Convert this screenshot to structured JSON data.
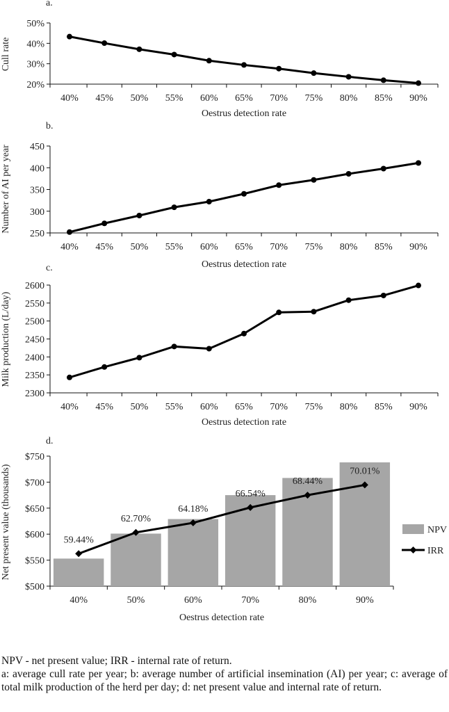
{
  "chart_data": [
    {
      "type": "line",
      "panel_label": "a.",
      "ylabel": "Cull rate",
      "xlabel": "Oestrus detection rate",
      "categories": [
        "40%",
        "45%",
        "50%",
        "55%",
        "60%",
        "65%",
        "70%",
        "75%",
        "80%",
        "85%",
        "90%"
      ],
      "series": [
        {
          "values": [
            43.3,
            40.1,
            37.1,
            34.5,
            31.5,
            29.4,
            27.6,
            25.4,
            23.6,
            21.9,
            20.5
          ]
        }
      ],
      "ylim": [
        20,
        50
      ],
      "yticks": [
        20,
        30,
        40,
        50
      ],
      "ytick_labels": [
        "20%",
        "30%",
        "40%",
        "50%"
      ],
      "grid": false
    },
    {
      "type": "line",
      "panel_label": "b.",
      "ylabel": "Number of AI per year",
      "xlabel": "Oestrus detection rate",
      "categories": [
        "40%",
        "45%",
        "50%",
        "55%",
        "60%",
        "65%",
        "70%",
        "75%",
        "80%",
        "85%",
        "90%"
      ],
      "series": [
        {
          "values": [
            252,
            272,
            290,
            309,
            322,
            340,
            360,
            372,
            386,
            398,
            411
          ]
        }
      ],
      "ylim": [
        250,
        450
      ],
      "yticks": [
        250,
        300,
        350,
        400,
        450
      ],
      "ytick_labels": [
        "250",
        "300",
        "350",
        "400",
        "450"
      ],
      "grid": false
    },
    {
      "type": "line",
      "panel_label": "c.",
      "ylabel": "Milk production (L/day)",
      "xlabel": "Oestrus detection rate",
      "categories": [
        "40%",
        "45%",
        "50%",
        "55%",
        "60%",
        "65%",
        "70%",
        "75%",
        "80%",
        "85%",
        "90%"
      ],
      "series": [
        {
          "values": [
            2343,
            2372,
            2398,
            2429,
            2423,
            2465,
            2524,
            2526,
            2558,
            2571,
            2599
          ]
        }
      ],
      "ylim": [
        2300,
        2600
      ],
      "yticks": [
        2300,
        2350,
        2400,
        2450,
        2500,
        2550,
        2600
      ],
      "ytick_labels": [
        "2300",
        "2350",
        "2400",
        "2450",
        "2500",
        "2550",
        "2600"
      ],
      "grid": false
    },
    {
      "type": "bar",
      "panel_label": "d.",
      "ylabel": "Net present value (thousands)",
      "xlabel": "Oestrus detection rate",
      "categories": [
        "40%",
        "50%",
        "60%",
        "70%",
        "80%",
        "90%"
      ],
      "series": [
        {
          "name": "NPV",
          "type": "bar",
          "color": "#a6a6a6",
          "values": [
            553,
            601,
            629,
            675,
            708,
            738
          ]
        },
        {
          "name": "IRR",
          "type": "line",
          "marker": "diamond",
          "color": "#000000",
          "values": [
            59.44,
            62.7,
            64.18,
            66.54,
            68.44,
            70.01
          ],
          "labels": [
            "59.44%",
            "62.70%",
            "64.18%",
            "66.54%",
            "68.44%",
            "70.01%"
          ]
        }
      ],
      "ylim": [
        500,
        750
      ],
      "yticks": [
        500,
        550,
        600,
        650,
        700,
        750
      ],
      "ytick_labels": [
        "$500",
        "$550",
        "$600",
        "$650",
        "$700",
        "$750"
      ],
      "irr_range": [
        54.44,
        74.44
      ],
      "legend_position": "right",
      "grid": false
    }
  ],
  "footer": {
    "abbreviations": "NPV - net present value; IRR - internal rate of return.",
    "description": "a: average cull rate per year; b: average number of artificial insemination (AI) per year; c: average of total milk production of the herd per day; d: net present value and internal rate of return."
  }
}
